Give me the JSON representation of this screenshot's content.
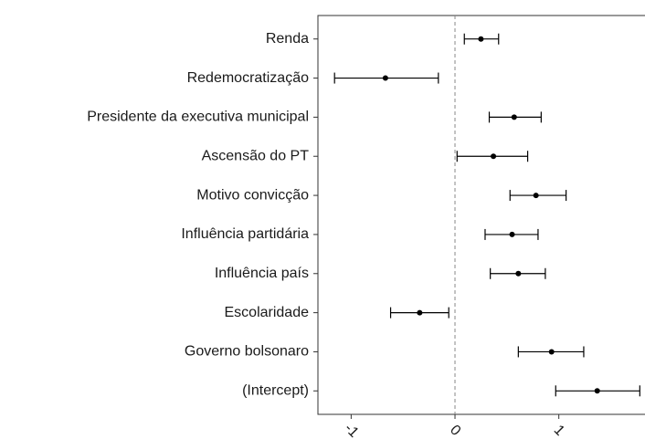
{
  "chart_data": {
    "type": "coefficient",
    "categories": [
      "Renda",
      "Redemocratização",
      "Presidente da executiva municipal",
      "Ascensão do PT",
      "Motivo convicção",
      "Influência partidária",
      "Influência país",
      "Escolaridade",
      "Governo bolsonaro",
      "(Intercept)"
    ],
    "values": [
      0.25,
      -0.67,
      0.57,
      0.37,
      0.78,
      0.55,
      0.61,
      -0.34,
      0.93,
      1.37
    ],
    "lower": [
      0.09,
      -1.16,
      0.33,
      0.02,
      0.53,
      0.29,
      0.34,
      -0.62,
      0.61,
      0.97
    ],
    "upper": [
      0.42,
      -0.16,
      0.83,
      0.7,
      1.07,
      0.8,
      0.87,
      -0.06,
      1.24,
      1.78
    ],
    "color": "#000000",
    "xlim": [
      -1.32,
      1.83
    ],
    "xticks": [
      -1,
      0,
      1
    ],
    "reference_line": 0
  }
}
